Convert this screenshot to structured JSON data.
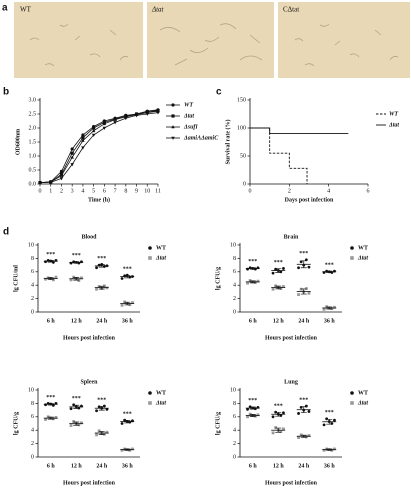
{
  "panel_labels": [
    "a",
    "b",
    "c",
    "d"
  ],
  "images": [
    {
      "label": "WT"
    },
    {
      "label": "Δtat"
    },
    {
      "label": "CΔtat"
    }
  ],
  "chart_data": [
    {
      "type": "line",
      "xlabel": "Time (h)",
      "ylabel": "OD600nm",
      "x": [
        0,
        1,
        2,
        3,
        4,
        5,
        6,
        7,
        8,
        9,
        10,
        11
      ],
      "xlim": [
        0,
        11
      ],
      "xticks": [
        0,
        1,
        2,
        3,
        4,
        5,
        6,
        7,
        8,
        9,
        10,
        11
      ],
      "ylim": [
        0,
        3
      ],
      "yticks": [
        {
          "value": 0,
          "label": "0.0"
        },
        0.5,
        {
          "value": 1,
          "label": "1.0"
        },
        1.5,
        {
          "value": 2,
          "label": "2.0"
        },
        2.5,
        {
          "value": 3,
          "label": "3.0"
        }
      ],
      "series": [
        {
          "name": "WT",
          "color": "#111111",
          "marker": "circle",
          "values": [
            0.05,
            0.08,
            0.45,
            1.25,
            1.75,
            2.05,
            2.25,
            2.35,
            2.45,
            2.5,
            2.6,
            2.65
          ]
        },
        {
          "name": "Δtat",
          "color": "#111111",
          "marker": "square",
          "values": [
            0.05,
            0.07,
            0.35,
            1.1,
            1.65,
            2.0,
            2.2,
            2.32,
            2.42,
            2.5,
            2.58,
            2.62
          ]
        },
        {
          "name": "ΔsufI",
          "color": "#111111",
          "marker": "triangle",
          "values": [
            0.05,
            0.07,
            0.3,
            0.95,
            1.55,
            1.9,
            2.15,
            2.3,
            2.4,
            2.48,
            2.55,
            2.6
          ]
        },
        {
          "name": "ΔamiAΔamiC",
          "color": "#111111",
          "marker": "triangle-down",
          "values": [
            0.05,
            0.06,
            0.2,
            0.7,
            1.3,
            1.75,
            2.0,
            2.2,
            2.35,
            2.45,
            2.5,
            2.55
          ]
        }
      ]
    },
    {
      "type": "step",
      "xlabel": "Days post infection",
      "ylabel": "Survival rate (%)",
      "xlim": [
        0,
        6
      ],
      "xticks": [
        0,
        2,
        4,
        6
      ],
      "ylim": [
        0,
        150
      ],
      "yticks": [
        0,
        50,
        100,
        150
      ],
      "series": [
        {
          "name": "WT",
          "color": "#111111",
          "dashed": true,
          "x": [
            0,
            1,
            2,
            2.9
          ],
          "values": [
            100,
            55,
            28,
            0
          ]
        },
        {
          "name": "Δtat",
          "color": "#111111",
          "dashed": false,
          "x": [
            0,
            1,
            5
          ],
          "values": [
            100,
            90,
            90
          ]
        }
      ]
    },
    {
      "type": "dot",
      "title": "Blood",
      "xlabel": "Hours post infection",
      "ylabel": "lg CFU/ml",
      "categories": [
        "6 h",
        "12 h",
        "24 h",
        "36 h"
      ],
      "ylim": [
        0,
        10
      ],
      "yticks": [
        0,
        2,
        4,
        6,
        8,
        10
      ],
      "annotations": [
        "***",
        "***",
        "***",
        "***"
      ],
      "series": [
        {
          "name": "WT",
          "color": "#111111",
          "marker": "circle",
          "values": [
            [
              7.5,
              7.7,
              7.6,
              7.4,
              7.7
            ],
            [
              7.3,
              7.5,
              7.4,
              7.3,
              7.5
            ],
            [
              6.6,
              7.0,
              7.1,
              6.8,
              6.9
            ],
            [
              5.0,
              5.4,
              5.5,
              5.2,
              5.3
            ]
          ]
        },
        {
          "name": "Δtat",
          "color": "#999999",
          "marker": "square",
          "values": [
            [
              4.9,
              5.1,
              5.0,
              4.8,
              5.2
            ],
            [
              4.8,
              5.2,
              5.0,
              4.7,
              5.1
            ],
            [
              3.4,
              3.8,
              3.5,
              3.9,
              3.6
            ],
            [
              1.0,
              1.5,
              1.3,
              1.1,
              1.4
            ]
          ]
        }
      ]
    },
    {
      "type": "dot",
      "title": "Brain",
      "xlabel": "Hours post infection",
      "ylabel": "lg CFU/g",
      "categories": [
        "6 h",
        "12 h",
        "24 h",
        "36 h"
      ],
      "ylim": [
        0,
        10
      ],
      "yticks": [
        0,
        2,
        4,
        6,
        8,
        10
      ],
      "annotations": [
        "***",
        "***",
        "***",
        "***"
      ],
      "series": [
        {
          "name": "WT",
          "color": "#111111",
          "marker": "circle",
          "values": [
            [
              6.4,
              6.6,
              6.5,
              6.4,
              6.6
            ],
            [
              5.8,
              6.4,
              6.2,
              6.0,
              6.5
            ],
            [
              6.6,
              7.5,
              7.0,
              7.8,
              6.7
            ],
            [
              5.9,
              6.1,
              6.0,
              5.9,
              6.1
            ]
          ]
        },
        {
          "name": "Δtat",
          "color": "#999999",
          "marker": "square",
          "values": [
            [
              4.3,
              4.7,
              4.5,
              4.4,
              4.6
            ],
            [
              3.4,
              3.9,
              3.7,
              3.5,
              3.8
            ],
            [
              2.6,
              3.4,
              3.0,
              3.5,
              2.8
            ],
            [
              0.4,
              0.8,
              0.6,
              0.5,
              0.7
            ]
          ]
        }
      ]
    },
    {
      "type": "dot",
      "title": "Spleen",
      "xlabel": "Hours post infection",
      "ylabel": "lg CFU/g",
      "categories": [
        "6 h",
        "12 h",
        "24 h",
        "36 h"
      ],
      "ylim": [
        0,
        10
      ],
      "yticks": [
        0,
        2,
        4,
        6,
        8,
        10
      ],
      "annotations": [
        "***",
        "***",
        "***",
        "***"
      ],
      "series": [
        {
          "name": "WT",
          "color": "#111111",
          "marker": "circle",
          "values": [
            [
              7.8,
              8.0,
              7.9,
              7.7,
              8.0
            ],
            [
              7.2,
              7.8,
              7.5,
              7.3,
              7.6
            ],
            [
              6.9,
              7.5,
              7.3,
              7.6,
              7.1
            ],
            [
              5.0,
              5.5,
              5.3,
              5.2,
              5.4
            ]
          ]
        },
        {
          "name": "Δtat",
          "color": "#999999",
          "marker": "square",
          "values": [
            [
              5.6,
              6.0,
              5.8,
              5.7,
              5.9
            ],
            [
              4.7,
              5.3,
              5.0,
              4.8,
              5.1
            ],
            [
              3.3,
              3.9,
              3.6,
              3.4,
              3.7
            ],
            [
              1.0,
              1.2,
              1.1,
              1.0,
              1.2
            ]
          ]
        }
      ]
    },
    {
      "type": "dot",
      "title": "Lung",
      "xlabel": "Hours post infection",
      "ylabel": "lg CFU/g",
      "categories": [
        "6 h",
        "12 h",
        "24 h",
        "36 h"
      ],
      "ylim": [
        0,
        10
      ],
      "yticks": [
        0,
        2,
        4,
        6,
        8,
        10
      ],
      "annotations": [
        "***",
        "***",
        "***",
        "***"
      ],
      "series": [
        {
          "name": "WT",
          "color": "#111111",
          "marker": "circle",
          "values": [
            [
              7.1,
              7.5,
              7.3,
              7.2,
              7.4
            ],
            [
              6.0,
              6.7,
              6.4,
              6.2,
              6.6
            ],
            [
              6.5,
              7.4,
              7.0,
              7.6,
              6.8
            ],
            [
              4.8,
              5.7,
              5.3,
              5.0,
              5.5
            ]
          ]
        },
        {
          "name": "Δtat",
          "color": "#999999",
          "marker": "square",
          "values": [
            [
              6.0,
              6.4,
              6.2,
              6.1,
              6.3
            ],
            [
              3.6,
              4.4,
              4.0,
              3.8,
              4.2
            ],
            [
              2.9,
              3.3,
              3.1,
              3.0,
              3.2
            ],
            [
              1.0,
              1.2,
              1.1,
              1.0,
              1.2
            ]
          ]
        }
      ]
    }
  ]
}
